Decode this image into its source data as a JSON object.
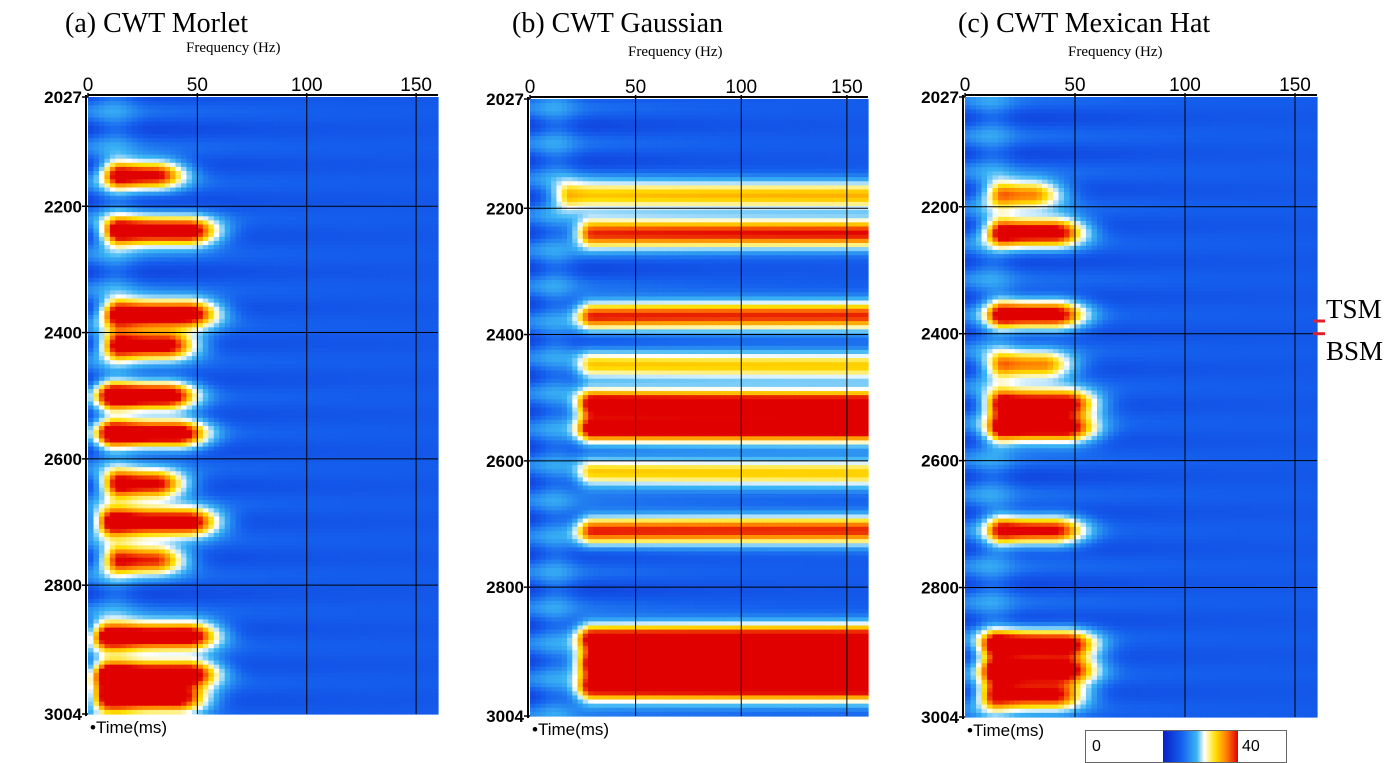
{
  "colors": {
    "ramp": [
      "#0a1fc8",
      "#1560ee",
      "#3ab4f4",
      "#ffffff",
      "#ffe000",
      "#ff7a00",
      "#e10000"
    ],
    "marker_line": "#e0202c"
  },
  "colorbar": {
    "min_label": "0",
    "max_label": "40"
  },
  "markers": [
    {
      "label": "TSM",
      "time_ms": 2380
    },
    {
      "label": "BSM",
      "time_ms": 2400
    }
  ],
  "chart_data": [
    {
      "type": "heatmap",
      "title": "(a) CWT Morlet",
      "xlabel": "Frequency (Hz)",
      "ylabel": "Time(ms)",
      "x_tick_labels": [
        "0",
        "50",
        "100",
        "150"
      ],
      "y_tick_labels": [
        "2027",
        "2200",
        "2400",
        "2600",
        "2800",
        "3004"
      ],
      "xlim": [
        0,
        160
      ],
      "ylim": [
        2027,
        3004
      ],
      "y_inverted": true,
      "grid": true,
      "value_range": [
        0,
        40
      ],
      "energy_bands": [
        {
          "t": 2150,
          "f0": 15,
          "f1": 30,
          "a": 36
        },
        {
          "t": 2240,
          "f0": 15,
          "f1": 45,
          "a": 42
        },
        {
          "t": 2370,
          "f0": 15,
          "f1": 45,
          "a": 42
        },
        {
          "t": 2420,
          "f0": 15,
          "f1": 35,
          "a": 40
        },
        {
          "t": 2500,
          "f0": 12,
          "f1": 35,
          "a": 42
        },
        {
          "t": 2560,
          "f0": 12,
          "f1": 40,
          "a": 42
        },
        {
          "t": 2640,
          "f0": 15,
          "f1": 30,
          "a": 38
        },
        {
          "t": 2700,
          "f0": 12,
          "f1": 45,
          "a": 42
        },
        {
          "t": 2760,
          "f0": 15,
          "f1": 30,
          "a": 34
        },
        {
          "t": 2880,
          "f0": 10,
          "f1": 45,
          "a": 42
        },
        {
          "t": 2940,
          "f0": 10,
          "f1": 45,
          "a": 42
        },
        {
          "t": 2980,
          "f0": 10,
          "f1": 40,
          "a": 40
        }
      ]
    },
    {
      "type": "heatmap",
      "title": "(b) CWT Gaussian",
      "xlabel": "Frequency (Hz)",
      "ylabel": "Time(ms)",
      "x_tick_labels": [
        "0",
        "50",
        "100",
        "150"
      ],
      "y_tick_labels": [
        "2027",
        "2200",
        "2400",
        "2600",
        "2800",
        "3004"
      ],
      "xlim": [
        0,
        160
      ],
      "ylim": [
        2027,
        3004
      ],
      "y_inverted": true,
      "grid": true,
      "value_range": [
        0,
        40
      ],
      "energy_bands": [
        {
          "t": 2180,
          "f0": 20,
          "f1": 160,
          "a": 24
        },
        {
          "t": 2240,
          "f0": 30,
          "f1": 160,
          "a": 34
        },
        {
          "t": 2370,
          "f0": 30,
          "f1": 160,
          "a": 32
        },
        {
          "t": 2450,
          "f0": 30,
          "f1": 160,
          "a": 22
        },
        {
          "t": 2510,
          "f0": 30,
          "f1": 160,
          "a": 40
        },
        {
          "t": 2550,
          "f0": 30,
          "f1": 160,
          "a": 38
        },
        {
          "t": 2620,
          "f0": 30,
          "f1": 160,
          "a": 22
        },
        {
          "t": 2710,
          "f0": 30,
          "f1": 160,
          "a": 32
        },
        {
          "t": 2880,
          "f0": 30,
          "f1": 160,
          "a": 38
        },
        {
          "t": 2920,
          "f0": 30,
          "f1": 160,
          "a": 40
        },
        {
          "t": 2960,
          "f0": 30,
          "f1": 160,
          "a": 38
        }
      ]
    },
    {
      "type": "heatmap",
      "title": "(c) CWT Mexican Hat",
      "xlabel": "Frequency (Hz)",
      "ylabel": "Time(ms)",
      "x_tick_labels": [
        "0",
        "50",
        "100",
        "150"
      ],
      "y_tick_labels": [
        "2027",
        "2200",
        "2400",
        "2600",
        "2800",
        "3004"
      ],
      "xlim": [
        0,
        160
      ],
      "ylim": [
        2027,
        3004
      ],
      "y_inverted": true,
      "grid": true,
      "value_range": [
        0,
        40
      ],
      "energy_bands": [
        {
          "t": 2180,
          "f0": 18,
          "f1": 30,
          "a": 28
        },
        {
          "t": 2240,
          "f0": 18,
          "f1": 40,
          "a": 40
        },
        {
          "t": 2370,
          "f0": 18,
          "f1": 40,
          "a": 38
        },
        {
          "t": 2450,
          "f0": 18,
          "f1": 35,
          "a": 28
        },
        {
          "t": 2510,
          "f0": 18,
          "f1": 45,
          "a": 40
        },
        {
          "t": 2550,
          "f0": 18,
          "f1": 45,
          "a": 38
        },
        {
          "t": 2710,
          "f0": 18,
          "f1": 40,
          "a": 34
        },
        {
          "t": 2890,
          "f0": 15,
          "f1": 45,
          "a": 40
        },
        {
          "t": 2930,
          "f0": 15,
          "f1": 45,
          "a": 38
        },
        {
          "t": 2970,
          "f0": 15,
          "f1": 40,
          "a": 36
        }
      ]
    }
  ]
}
